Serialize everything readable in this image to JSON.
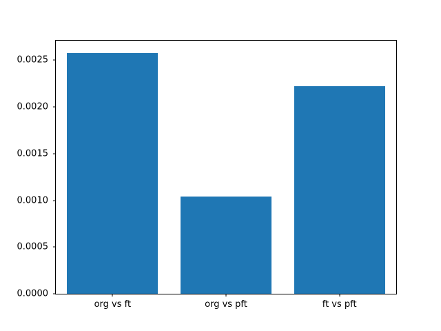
{
  "chart_data": {
    "type": "bar",
    "categories": [
      "org vs ft",
      "org vs pft",
      "ft vs pft"
    ],
    "values": [
      0.00258,
      0.00104,
      0.00222
    ],
    "title": "",
    "xlabel": "",
    "ylabel": "",
    "ylim": [
      0,
      0.00271
    ],
    "yticks": [
      0.0,
      0.0005,
      0.001,
      0.0015,
      0.002,
      0.0025
    ],
    "ytick_labels": [
      "0.0000",
      "0.0005",
      "0.0010",
      "0.0015",
      "0.0020",
      "0.0025"
    ],
    "bar_width_fraction": 0.8,
    "grid": false,
    "legend_position": "none"
  },
  "colors": {
    "background": "#ffffff",
    "axis_frame": "#000000",
    "bar": "#1f77b4"
  }
}
